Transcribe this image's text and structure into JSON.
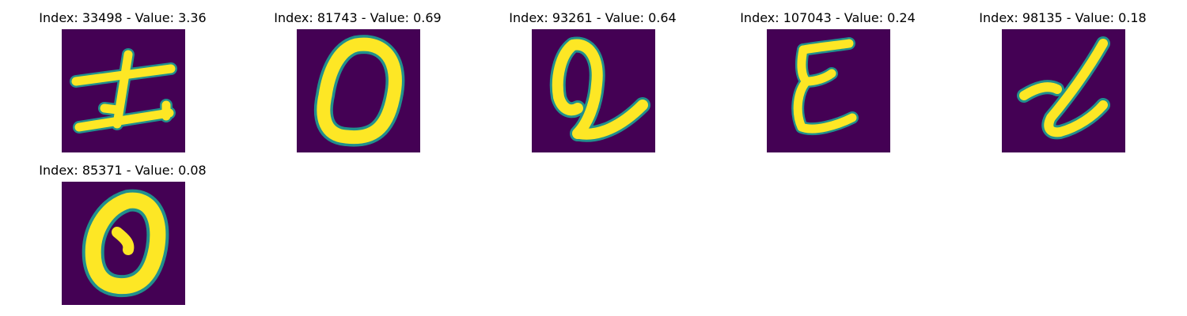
{
  "figure": {
    "colors": {
      "background": "#440154",
      "stroke": "#fde725",
      "edge": "#21908d"
    },
    "panels": [
      {
        "title": "Index: 33498 - Value: 3.36",
        "glyph": "strokes-like-character-with-crossbars"
      },
      {
        "title": "Index: 81743 - Value: 0.69",
        "glyph": "loop-0"
      },
      {
        "title": "Index: 93261 - Value: 0.64",
        "glyph": "loop-with-tail"
      },
      {
        "title": "Index: 107043 - Value: 0.24",
        "glyph": "e-like"
      },
      {
        "title": "Index: 98135 - Value: 0.18",
        "glyph": "slanted-l-like"
      },
      {
        "title": "Index: 85371 - Value: 0.08",
        "glyph": "loop-0"
      }
    ]
  }
}
